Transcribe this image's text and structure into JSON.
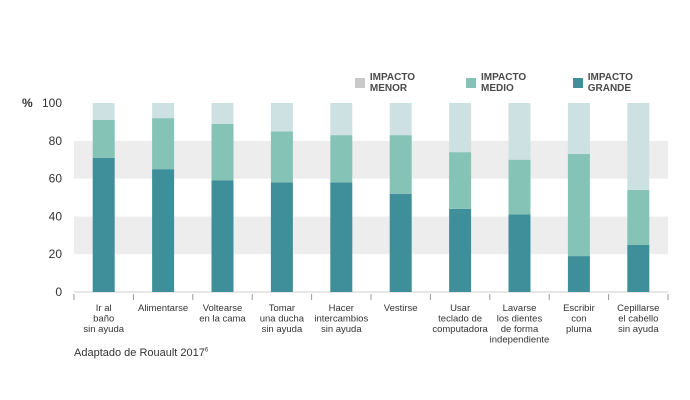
{
  "chart_data": {
    "type": "bar",
    "stacked": true,
    "ylabel": "%",
    "ylim": [
      0,
      100
    ],
    "yticks": [
      0,
      20,
      40,
      60,
      80,
      100
    ],
    "grid": true,
    "legend_position": "top-right",
    "categories": [
      [
        "Ir al",
        "baño",
        "sin ayuda"
      ],
      [
        "Alimentarse"
      ],
      [
        "Voltearse",
        "en la cama"
      ],
      [
        "Tomar",
        "una ducha",
        "sin ayuda"
      ],
      [
        "Hacer",
        "intercambios",
        "sin ayuda"
      ],
      [
        "Vestirse"
      ],
      [
        "Usar",
        "teclado de",
        "computadora"
      ],
      [
        "Lavarse",
        "los dientes",
        "de forma",
        "independiente"
      ],
      [
        "Escribir",
        "con",
        "pluma"
      ],
      [
        "Cepillarse",
        "el cabello",
        "sin ayuda"
      ]
    ],
    "series": [
      {
        "name": "IMPACTO GRANDE",
        "color": "#3f8f9a",
        "values": [
          71,
          65,
          59,
          58,
          58,
          52,
          44,
          41,
          19,
          25
        ]
      },
      {
        "name": "IMPACTO MEDIO",
        "color": "#86c3b7",
        "values": [
          20,
          27,
          30,
          27,
          25,
          31,
          30,
          29,
          54,
          29
        ]
      },
      {
        "name": "IMPACTO MENOR",
        "color": "#cde1e3",
        "values": [
          9,
          8,
          11,
          15,
          17,
          17,
          26,
          30,
          27,
          46
        ]
      }
    ]
  },
  "legend": [
    {
      "label": "IMPACTO MENOR",
      "color": "#c9c9c9"
    },
    {
      "label": "IMPACTO MEDIO",
      "color": "#86c3b7"
    },
    {
      "label": "IMPACTO GRANDE",
      "color": "#3f8f9a"
    }
  ],
  "y_axis_title": "%",
  "source": {
    "text": "Adaptado de Rouault 2017",
    "sup": "6"
  }
}
